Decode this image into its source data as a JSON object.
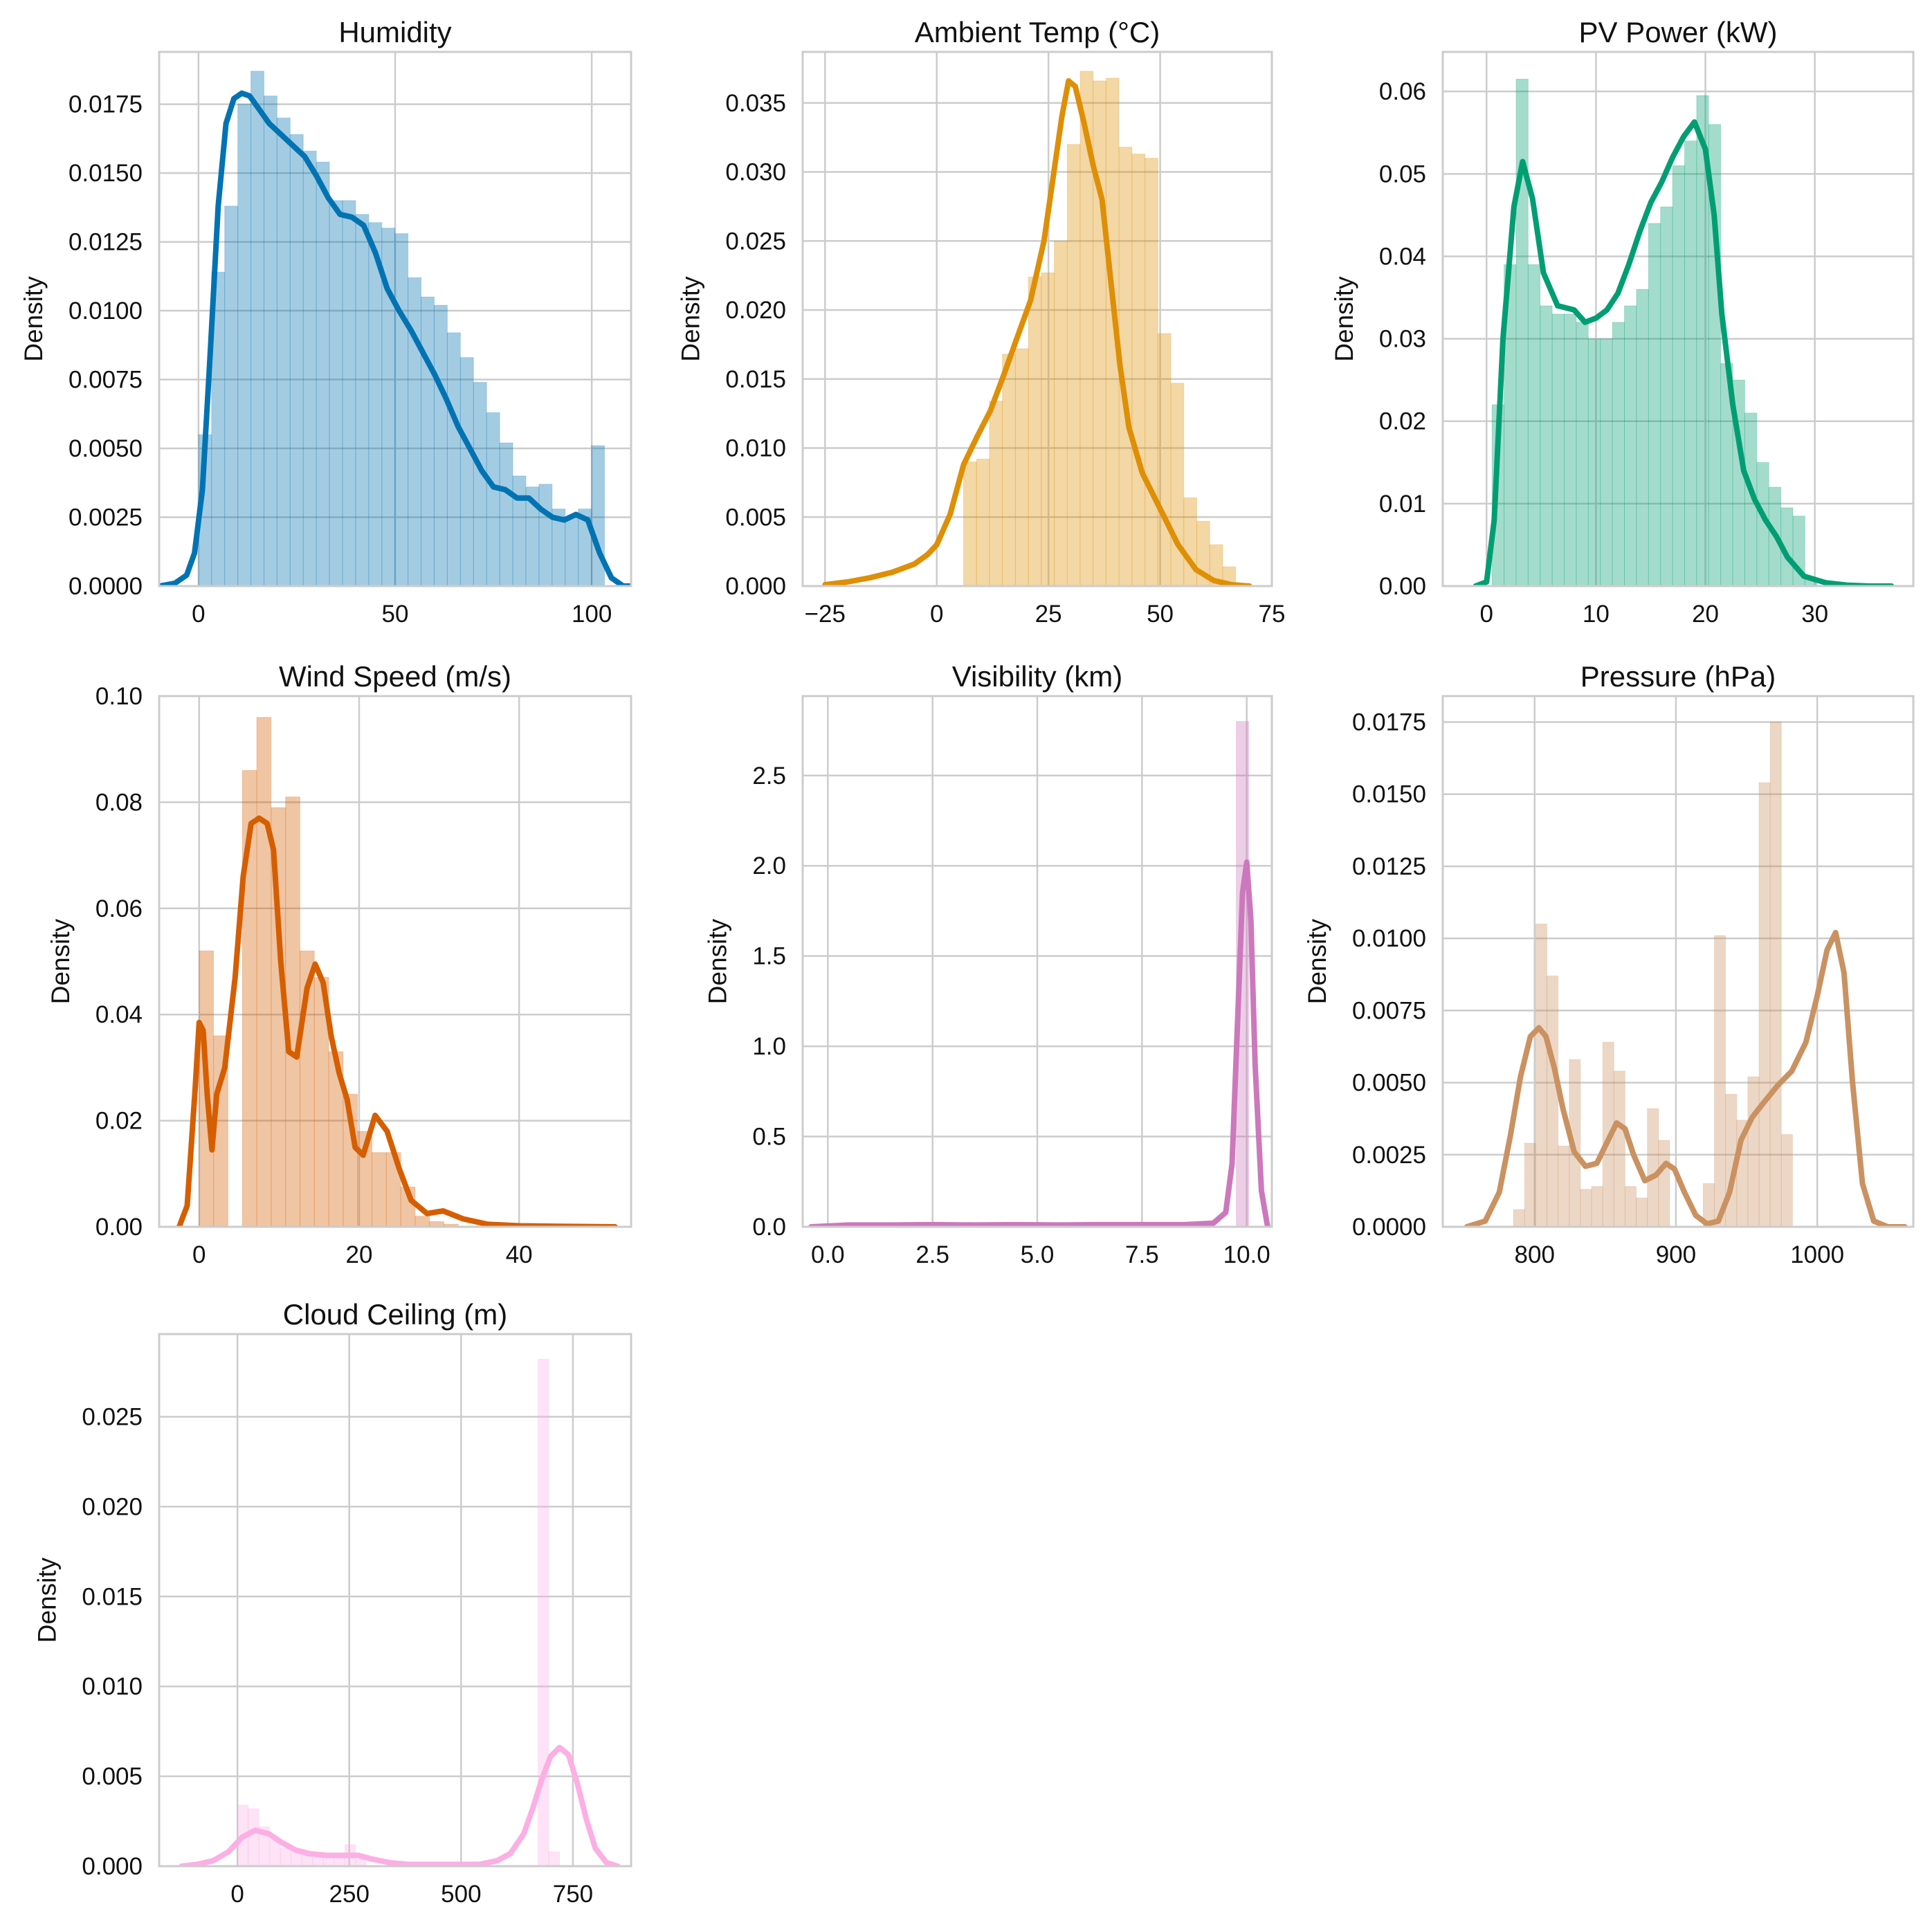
{
  "figure": {
    "ylabel_text": "Density"
  },
  "chart_data": [
    {
      "type": "histogram",
      "title": "Humidity",
      "xlabel": "",
      "ylabel": "Density",
      "color": "#0173b2",
      "xlim": [
        -10,
        110
      ],
      "ylim": [
        0,
        0.0194
      ],
      "xticks": [
        0,
        50,
        100
      ],
      "xtick_labels": [
        "0",
        "50",
        "100"
      ],
      "yticks": [
        0,
        0.0025,
        0.005,
        0.0075,
        0.01,
        0.0125,
        0.015,
        0.0175
      ],
      "ytick_labels": [
        "0.0000",
        "0.0025",
        "0.0050",
        "0.0075",
        "0.0100",
        "0.0125",
        "0.0150",
        "0.0175"
      ],
      "grid": true,
      "bins": {
        "start": 0,
        "width": 3.33,
        "values": [
          0.0055,
          0.0114,
          0.0138,
          0.0175,
          0.0187,
          0.0178,
          0.017,
          0.0164,
          0.0158,
          0.0154,
          0.014,
          0.014,
          0.0135,
          0.0132,
          0.013,
          0.0128,
          0.0112,
          0.0105,
          0.0102,
          0.0092,
          0.0083,
          0.0074,
          0.0063,
          0.0052,
          0.004,
          0.0036,
          0.0037,
          0.0028,
          0.0025,
          0.0028,
          0.0051
        ]
      },
      "kde": {
        "x": [
          -10,
          -6,
          -3,
          -1,
          1,
          3,
          5,
          7,
          9,
          11,
          13,
          15,
          18,
          21,
          24,
          27,
          30,
          33,
          36,
          39,
          42,
          45,
          48,
          51,
          54,
          57,
          60,
          63,
          66,
          69,
          72,
          75,
          78,
          81,
          84,
          87,
          90,
          93,
          96,
          99,
          102,
          105,
          108,
          110
        ],
        "y": [
          0.0,
          0.0001,
          0.0004,
          0.0012,
          0.0035,
          0.0085,
          0.0138,
          0.0168,
          0.0177,
          0.0179,
          0.0178,
          0.0174,
          0.0168,
          0.0164,
          0.016,
          0.0156,
          0.0149,
          0.0141,
          0.0135,
          0.0134,
          0.0131,
          0.0121,
          0.0108,
          0.01,
          0.0093,
          0.0085,
          0.0077,
          0.0068,
          0.0058,
          0.005,
          0.0042,
          0.0036,
          0.0035,
          0.0032,
          0.0032,
          0.0028,
          0.0025,
          0.0024,
          0.0026,
          0.0024,
          0.0012,
          0.0003,
          0.0,
          0.0
        ]
      }
    },
    {
      "type": "histogram",
      "title": "Ambient Temp (°C)",
      "xlabel": "",
      "ylabel": "Density",
      "color": "#de8f05",
      "xlim": [
        -30,
        75
      ],
      "ylim": [
        0,
        0.0387
      ],
      "xticks": [
        -25,
        0,
        25,
        50,
        75
      ],
      "xtick_labels": [
        "−25",
        "0",
        "25",
        "50",
        "75"
      ],
      "yticks": [
        0,
        0.005,
        0.01,
        0.015,
        0.02,
        0.025,
        0.03,
        0.035
      ],
      "ytick_labels": [
        "0.000",
        "0.005",
        "0.010",
        "0.015",
        "0.020",
        "0.025",
        "0.030",
        "0.035"
      ],
      "grid": true,
      "bins": {
        "start": 6,
        "width": 2.9,
        "values": [
          0.009,
          0.0092,
          0.0134,
          0.0168,
          0.0172,
          0.0224,
          0.0227,
          0.025,
          0.032,
          0.0373,
          0.0366,
          0.0368,
          0.0318,
          0.0313,
          0.031,
          0.0183,
          0.0147,
          0.0064,
          0.0047,
          0.003,
          0.0014
        ]
      },
      "kde": {
        "x": [
          -25,
          -20,
          -15,
          -10,
          -5,
          -2,
          0,
          3,
          6,
          9,
          12,
          15,
          18,
          21,
          24,
          26,
          28,
          29.5,
          31,
          33,
          35,
          37,
          39,
          41,
          43,
          46,
          50,
          54,
          58,
          62,
          66,
          70
        ],
        "y": [
          0.0001,
          0.0003,
          0.0006,
          0.001,
          0.0016,
          0.0023,
          0.003,
          0.0052,
          0.0088,
          0.0108,
          0.0127,
          0.0153,
          0.018,
          0.0207,
          0.025,
          0.0295,
          0.034,
          0.0366,
          0.0362,
          0.0335,
          0.0305,
          0.028,
          0.022,
          0.016,
          0.0115,
          0.0082,
          0.0056,
          0.003,
          0.0012,
          0.0004,
          0.0001,
          0.0
        ]
      }
    },
    {
      "type": "histogram",
      "title": "PV Power (kW)",
      "xlabel": "",
      "ylabel": "Density",
      "color": "#029e73",
      "xlim": [
        -4,
        39
      ],
      "ylim": [
        0,
        0.0648
      ],
      "xticks": [
        0,
        10,
        20,
        30
      ],
      "xtick_labels": [
        "0",
        "10",
        "20",
        "30"
      ],
      "yticks": [
        0,
        0.01,
        0.02,
        0.03,
        0.04,
        0.05,
        0.06
      ],
      "ytick_labels": [
        "0.00",
        "0.01",
        "0.02",
        "0.03",
        "0.04",
        "0.05",
        "0.06"
      ],
      "grid": true,
      "bins": {
        "start": 0.5,
        "width": 1.1,
        "values": [
          0.022,
          0.039,
          0.0615,
          0.039,
          0.034,
          0.033,
          0.033,
          0.032,
          0.03,
          0.03,
          0.032,
          0.034,
          0.036,
          0.044,
          0.046,
          0.051,
          0.054,
          0.0595,
          0.056,
          0.027,
          0.025,
          0.021,
          0.015,
          0.012,
          0.0095,
          0.0085,
          0.001
        ]
      },
      "kde": {
        "x": [
          -1,
          0,
          0.7,
          1.5,
          2.5,
          3.3,
          4.2,
          5.2,
          6.5,
          8,
          9,
          10,
          11,
          12,
          13,
          14,
          15,
          16,
          17,
          18,
          19,
          20,
          20.8,
          21.5,
          22.5,
          23.5,
          24.5,
          25.5,
          26.5,
          27.5,
          29,
          31,
          33,
          35,
          37
        ],
        "y": [
          0.0,
          0.0005,
          0.008,
          0.03,
          0.046,
          0.0515,
          0.047,
          0.038,
          0.034,
          0.0335,
          0.032,
          0.0325,
          0.0335,
          0.0355,
          0.039,
          0.043,
          0.0465,
          0.049,
          0.052,
          0.0545,
          0.0563,
          0.053,
          0.045,
          0.033,
          0.022,
          0.014,
          0.0105,
          0.008,
          0.006,
          0.0035,
          0.0012,
          0.0004,
          0.0001,
          0.0,
          0.0
        ]
      }
    },
    {
      "type": "histogram",
      "title": "Wind Speed (m/s)",
      "xlabel": "",
      "ylabel": "Density",
      "color": "#d55e00",
      "xlim": [
        -5,
        54
      ],
      "ylim": [
        0,
        0.1
      ],
      "xticks": [
        0,
        20,
        40
      ],
      "xtick_labels": [
        "0",
        "20",
        "40"
      ],
      "yticks": [
        0,
        0.02,
        0.04,
        0.06,
        0.08,
        0.1
      ],
      "ytick_labels": [
        "0.00",
        "0.02",
        "0.04",
        "0.06",
        "0.08",
        "0.10"
      ],
      "grid": true,
      "bins": {
        "start": 0,
        "width": 1.8,
        "values": [
          0.052,
          0.036,
          0.0,
          0.086,
          0.096,
          0.079,
          0.081,
          0.052,
          0.047,
          0.033,
          0.025,
          0.018,
          0.014,
          0.014,
          0.0075,
          0.002,
          0.001,
          0.0005
        ]
      },
      "kde": {
        "x": [
          -2.5,
          -1.5,
          -0.5,
          0,
          0.5,
          1,
          1.6,
          2.2,
          3.2,
          4.5,
          5.5,
          6.5,
          7.5,
          8.5,
          9.3,
          10.2,
          11.2,
          12.2,
          13.5,
          14.5,
          15.5,
          16.5,
          17.5,
          18.5,
          19.5,
          20.5,
          22,
          23.5,
          25,
          26.5,
          28.5,
          30.5,
          33,
          36,
          40,
          45,
          52
        ],
        "y": [
          0.0,
          0.004,
          0.026,
          0.0385,
          0.037,
          0.025,
          0.0145,
          0.025,
          0.03,
          0.047,
          0.066,
          0.076,
          0.077,
          0.076,
          0.071,
          0.05,
          0.033,
          0.032,
          0.045,
          0.0495,
          0.046,
          0.036,
          0.029,
          0.024,
          0.015,
          0.0135,
          0.021,
          0.018,
          0.011,
          0.005,
          0.0025,
          0.003,
          0.0015,
          0.0005,
          0.0002,
          0.0001,
          0.0
        ]
      }
    },
    {
      "type": "histogram",
      "title": "Visibility (km)",
      "xlabel": "",
      "ylabel": "Density",
      "color": "#cc78bc",
      "xlim": [
        -0.6,
        10.6
      ],
      "ylim": [
        0,
        2.94
      ],
      "xticks": [
        0,
        2.5,
        5,
        7.5,
        10
      ],
      "xtick_labels": [
        "0.0",
        "2.5",
        "5.0",
        "7.5",
        "10.0"
      ],
      "yticks": [
        0,
        0.5,
        1,
        1.5,
        2,
        2.5
      ],
      "ytick_labels": [
        "0.0",
        "0.5",
        "1.0",
        "1.5",
        "2.0",
        "2.5"
      ],
      "grid": true,
      "bins": {
        "start": 9.75,
        "width": 0.3,
        "values": [
          2.8
        ]
      },
      "kde": {
        "x": [
          -0.4,
          0.5,
          1.5,
          2.5,
          3.5,
          4.5,
          5.5,
          6.5,
          7.5,
          8.5,
          9.2,
          9.5,
          9.65,
          9.8,
          9.9,
          10.0,
          10.1,
          10.2,
          10.35,
          10.5
        ],
        "y": [
          0.0,
          0.01,
          0.01,
          0.012,
          0.01,
          0.012,
          0.01,
          0.012,
          0.012,
          0.012,
          0.02,
          0.08,
          0.35,
          1.25,
          1.85,
          2.02,
          1.7,
          0.9,
          0.2,
          0.0
        ]
      }
    },
    {
      "type": "histogram",
      "title": "Pressure (hPa)",
      "xlabel": "",
      "ylabel": "Density",
      "color": "#ca9161",
      "xlim": [
        735,
        1068
      ],
      "ylim": [
        0,
        0.0184
      ],
      "xticks": [
        800,
        900,
        1000
      ],
      "xtick_labels": [
        "800",
        "900",
        "1000"
      ],
      "yticks": [
        0,
        0.0025,
        0.005,
        0.0075,
        0.01,
        0.0125,
        0.015,
        0.0175
      ],
      "ytick_labels": [
        "0.0000",
        "0.0025",
        "0.0050",
        "0.0075",
        "0.0100",
        "0.0125",
        "0.0150",
        "0.0175"
      ],
      "grid": true,
      "bins": {
        "start": 785,
        "width": 7.9,
        "values": [
          0.0006,
          0.0029,
          0.0105,
          0.0087,
          0.0028,
          0.0058,
          0.0013,
          0.0014,
          0.0064,
          0.0054,
          0.0014,
          0.001,
          0.0041,
          0.003,
          0.0,
          0.0,
          0.0,
          0.0015,
          0.0101,
          0.0046,
          0.0037,
          0.0052,
          0.0154,
          0.0175,
          0.0032
        ]
      },
      "kde": {
        "x": [
          752,
          765,
          775,
          783,
          790,
          797,
          803,
          808,
          814,
          820,
          828,
          836,
          844,
          852,
          858,
          864,
          870,
          878,
          886,
          893,
          899,
          906,
          914,
          922,
          930,
          938,
          946,
          954,
          962,
          972,
          982,
          992,
          1000,
          1007,
          1013,
          1019,
          1025,
          1032,
          1040,
          1050,
          1062
        ],
        "y": [
          0.0,
          0.0002,
          0.0012,
          0.0032,
          0.0052,
          0.0066,
          0.0069,
          0.0066,
          0.0055,
          0.0041,
          0.0026,
          0.0021,
          0.0022,
          0.003,
          0.0036,
          0.0034,
          0.0025,
          0.0016,
          0.0018,
          0.0022,
          0.002,
          0.0012,
          0.0004,
          0.0001,
          0.0002,
          0.0012,
          0.003,
          0.0038,
          0.0043,
          0.0049,
          0.0054,
          0.0064,
          0.008,
          0.0096,
          0.0102,
          0.0088,
          0.005,
          0.0015,
          0.0002,
          0.0,
          0.0
        ]
      }
    },
    {
      "type": "histogram",
      "title": "Cloud Ceiling (m)",
      "xlabel": "",
      "ylabel": "Density",
      "color": "#fbafe4",
      "xlim": [
        -175,
        880
      ],
      "ylim": [
        0,
        0.0296
      ],
      "xticks": [
        0,
        250,
        500,
        750
      ],
      "xtick_labels": [
        "0",
        "250",
        "500",
        "750"
      ],
      "yticks": [
        0,
        0.005,
        0.01,
        0.015,
        0.02,
        0.025
      ],
      "ytick_labels": [
        "0.000",
        "0.005",
        "0.010",
        "0.015",
        "0.020",
        "0.025"
      ],
      "grid": true,
      "bins": {
        "start": 0,
        "width": 24,
        "values": [
          0.0034,
          0.0032,
          0.0022,
          0.0015,
          0.001,
          0.0008,
          0.0007,
          0.0006,
          0.0007,
          0.0006,
          0.0012,
          0.0004,
          0.0,
          0.0,
          0.0,
          0.0,
          0.0,
          0.0,
          0.0,
          0.0,
          0.0,
          0.0,
          0.0,
          0.0,
          0.0,
          0.0,
          0.0,
          0.0,
          0.0282,
          0.0008
        ]
      },
      "kde": {
        "x": [
          -125,
          -90,
          -55,
          -20,
          10,
          40,
          70,
          100,
          130,
          160,
          200,
          240,
          270,
          300,
          340,
          380,
          420,
          460,
          500,
          540,
          580,
          610,
          640,
          660,
          680,
          700,
          720,
          740,
          760,
          780,
          800,
          825,
          850
        ],
        "y": [
          0.0,
          0.0001,
          0.0003,
          0.0008,
          0.0016,
          0.002,
          0.0018,
          0.0013,
          0.0009,
          0.0007,
          0.0006,
          0.0006,
          0.0006,
          0.0004,
          0.0002,
          0.0001,
          0.0001,
          0.0001,
          0.0001,
          0.0001,
          0.0003,
          0.0007,
          0.0018,
          0.0032,
          0.0048,
          0.0061,
          0.0066,
          0.0062,
          0.0046,
          0.0026,
          0.001,
          0.0002,
          0.0
        ]
      }
    }
  ]
}
